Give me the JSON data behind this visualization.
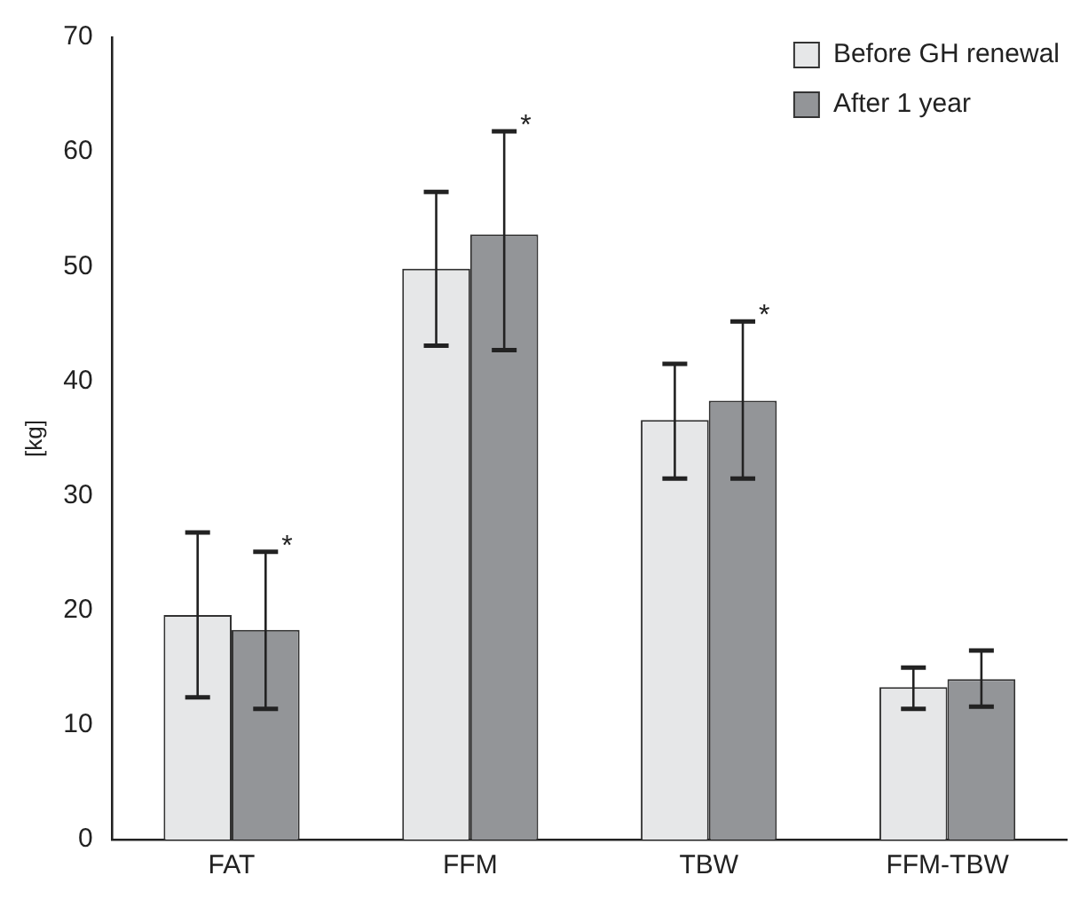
{
  "chart_data": {
    "type": "bar",
    "ylabel": "[kg]",
    "categories": [
      "FAT",
      "FFM",
      "TBW",
      "FFM-TBW"
    ],
    "series": [
      {
        "name": "Before GH renewal",
        "color": "#e6e7e8",
        "values": [
          19.6,
          49.8,
          36.6,
          13.3
        ],
        "errors": [
          [
            12.4,
            26.8
          ],
          [
            43.1,
            56.5
          ],
          [
            31.5,
            41.5
          ],
          [
            11.4,
            15.0
          ]
        ]
      },
      {
        "name": "After 1 year",
        "color": "#939598",
        "values": [
          18.3,
          52.8,
          38.3,
          14.0
        ],
        "errors": [
          [
            11.4,
            25.1
          ],
          [
            42.7,
            61.8
          ],
          [
            31.5,
            45.2
          ],
          [
            11.6,
            16.5
          ]
        ]
      }
    ],
    "ylim": [
      0,
      70
    ],
    "yticks": [
      0,
      10,
      20,
      30,
      40,
      50,
      60,
      70
    ],
    "grid": false,
    "legend": "top right",
    "annotations": [
      "*",
      "*",
      "*"
    ]
  }
}
